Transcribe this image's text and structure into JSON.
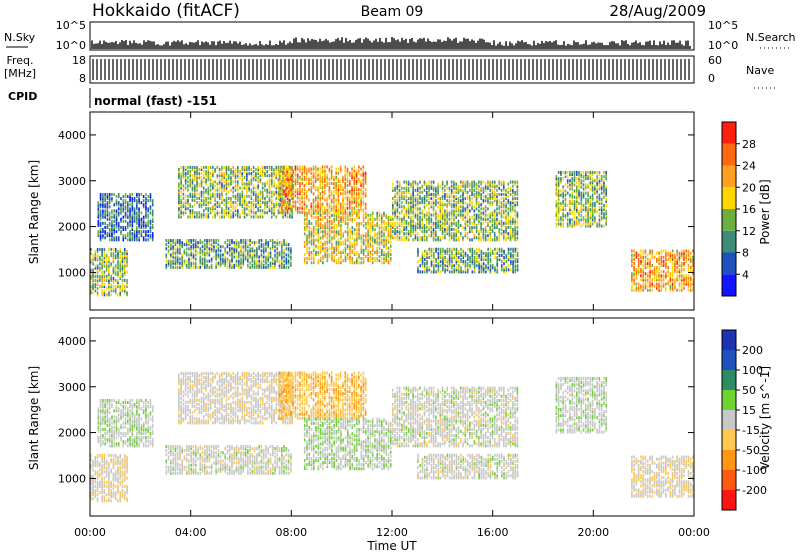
{
  "header": {
    "station": "Hokkaido (fitACF)",
    "beam": "Beam 09",
    "date": "28/Aug/2009"
  },
  "top_panels": {
    "nsky_label": "N.Sky",
    "nsky_ticks": [
      "10^5",
      "10^0"
    ],
    "nsearch_label": "N.Search",
    "nsearch_ticks": [
      "10^5",
      "10^0"
    ],
    "freq_label": "Freq.",
    "freq_unit": "[MHz]",
    "freq_ticks": [
      "18",
      "8"
    ],
    "nave_label": "Nave",
    "nave_ticks": [
      "60",
      "0"
    ],
    "cpid_label": "CPID",
    "cpid_value": "normal (fast) -151"
  },
  "time_axis": {
    "label": "Time UT",
    "ticks": [
      "00:00",
      "04:00",
      "08:00",
      "12:00",
      "16:00",
      "20:00",
      "00:00"
    ]
  },
  "range_axis": {
    "label": "Slant Range [km]",
    "ticks": [
      "1000",
      "2000",
      "3000",
      "4000"
    ]
  },
  "power_scale": {
    "label": "Power [dB]",
    "levels": [
      "4",
      "8",
      "12",
      "16",
      "20",
      "24",
      "28"
    ],
    "colors": [
      "#1414ff",
      "#1e50be",
      "#3c8c78",
      "#6cb040",
      "#ffd700",
      "#ffa020",
      "#ff6a10",
      "#ff1e10"
    ]
  },
  "velocity_scale": {
    "label": "Velocity [m s^-1]",
    "levels": [
      "-200",
      "-100",
      "-50",
      "-15",
      "15",
      "50",
      "100",
      "200"
    ],
    "colors": [
      "#ff1414",
      "#ff5a14",
      "#ff9614",
      "#ffc850",
      "#c8c8c8",
      "#6ed232",
      "#2d8c64",
      "#1e50be",
      "#1e32b4"
    ]
  },
  "chart_data": {
    "type": "heatmap",
    "panels": [
      {
        "name": "power",
        "ylim": [
          180,
          4500
        ],
        "xlim_hours": [
          0,
          24
        ]
      },
      {
        "name": "velocity",
        "ylim": [
          180,
          4500
        ],
        "xlim_hours": [
          0,
          24
        ]
      }
    ],
    "echo_regions_hours_km": [
      {
        "t0": 0.0,
        "t1": 1.5,
        "r0": 500,
        "r1": 1500,
        "power_db": 14,
        "velocity": -10
      },
      {
        "t0": 0.3,
        "t1": 2.5,
        "r0": 1700,
        "r1": 2700,
        "power_db": 8,
        "velocity": 5
      },
      {
        "t0": 3.0,
        "t1": 8.0,
        "r0": 1100,
        "r1": 1700,
        "power_db": 12,
        "velocity": 0
      },
      {
        "t0": 3.5,
        "t1": 8.0,
        "r0": 2200,
        "r1": 3300,
        "power_db": 14,
        "velocity": -5
      },
      {
        "t0": 7.5,
        "t1": 11.0,
        "r0": 2300,
        "r1": 3300,
        "power_db": 22,
        "velocity": -40
      },
      {
        "t0": 8.5,
        "t1": 12.0,
        "r0": 1200,
        "r1": 2300,
        "power_db": 18,
        "velocity": 10
      },
      {
        "t0": 12.0,
        "t1": 17.0,
        "r0": 1700,
        "r1": 3000,
        "power_db": 14,
        "velocity": 0
      },
      {
        "t0": 13.0,
        "t1": 17.0,
        "r0": 1000,
        "r1": 1500,
        "power_db": 12,
        "velocity": 0
      },
      {
        "t0": 18.5,
        "t1": 20.5,
        "r0": 2000,
        "r1": 3200,
        "power_db": 14,
        "velocity": 5
      },
      {
        "t0": 21.5,
        "t1": 24.0,
        "r0": 600,
        "r1": 1500,
        "power_db": 22,
        "velocity": -10
      }
    ]
  }
}
